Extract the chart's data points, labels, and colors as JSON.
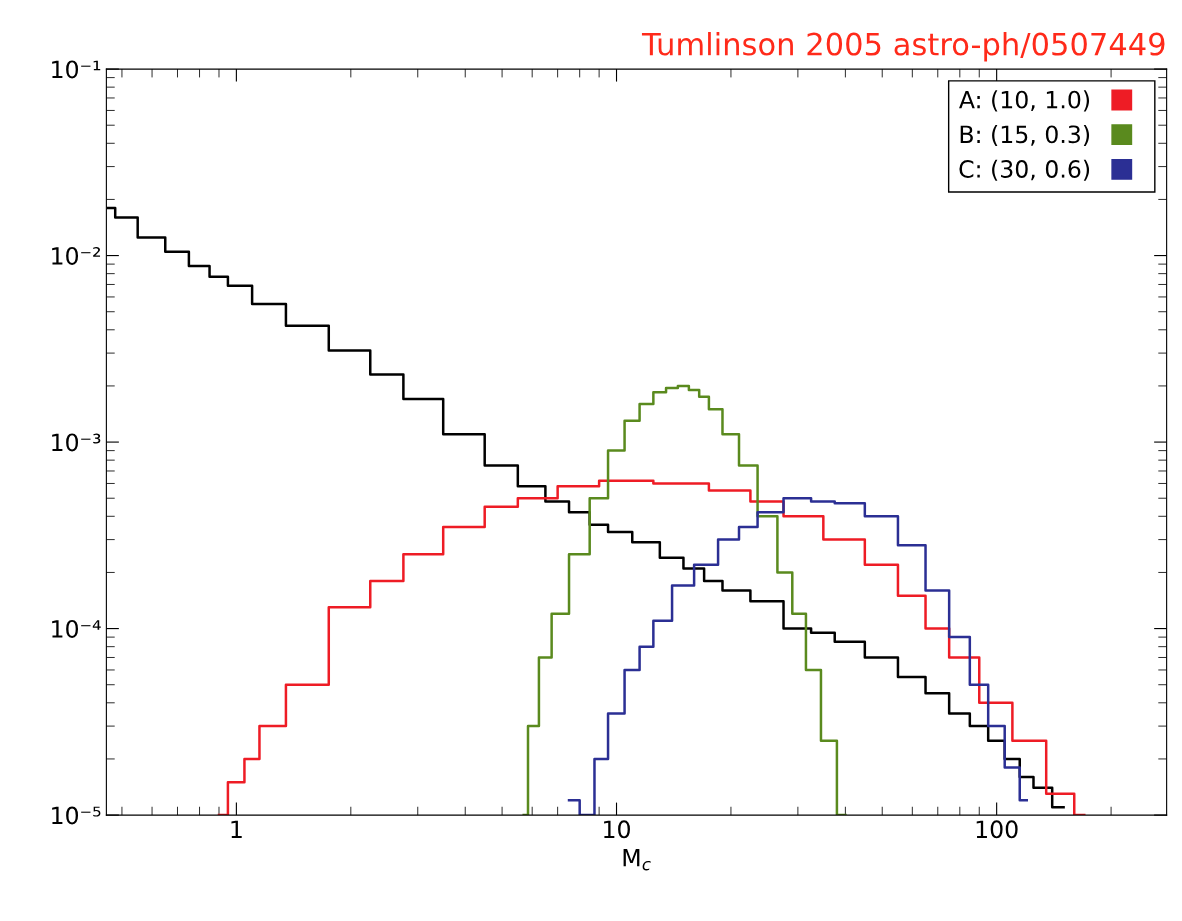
{
  "chart_data": {
    "type": "step",
    "title": "Tumlinson 2005 astro-ph/0507449",
    "xlabel": "M$_{c}$",
    "log": "xy",
    "grid": false,
    "legend": "top right",
    "xlim": [
      0.455,
      280
    ],
    "xticks": [
      1,
      10,
      100
    ],
    "ylim": [
      1e-05,
      0.1
    ],
    "yticks": [
      {
        "value": 1e-05,
        "label": "10⁻⁵"
      },
      {
        "value": 0.0001,
        "label": "10⁻⁴"
      },
      {
        "value": 0.001,
        "label": "10⁻³"
      },
      {
        "value": 0.01,
        "label": "10⁻²"
      },
      {
        "value": 0.1,
        "label": "10⁻¹"
      }
    ],
    "series": [
      {
        "color": "#000000",
        "x": [
          0.46,
          0.5,
          0.6,
          0.7,
          0.8,
          0.9,
          1,
          1.2,
          1.5,
          2,
          2.5,
          3,
          4,
          5,
          6,
          7,
          8,
          9,
          10,
          12,
          14,
          16,
          18,
          20,
          25,
          30,
          35,
          40,
          50,
          60,
          70,
          80,
          90,
          100,
          110,
          120,
          130,
          150
        ],
        "values": [
          0.018,
          0.016,
          0.0125,
          0.0105,
          0.0088,
          0.0077,
          0.0069,
          0.0055,
          0.0042,
          0.0031,
          0.0023,
          0.0017,
          0.0011,
          0.00075,
          0.00058,
          0.00048,
          0.00042,
          0.00036,
          0.00033,
          0.00029,
          0.00024,
          0.00021,
          0.00018,
          0.00016,
          0.00014,
          0.0001,
          9.5e-05,
          8.5e-05,
          7e-05,
          5.5e-05,
          4.5e-05,
          3.5e-05,
          3e-05,
          2.5e-05,
          2e-05,
          1.6e-05,
          1.4e-05,
          1.1e-05
        ]
      },
      {
        "name": "A: (10, 1.0)",
        "color": "#ee1c25",
        "x": [
          0.9,
          1.0,
          1.1,
          1.2,
          1.5,
          2,
          2.5,
          3,
          4,
          5,
          6,
          8,
          10,
          15,
          20,
          25,
          30,
          40,
          50,
          60,
          70,
          80,
          100,
          120,
          150,
          170
        ],
        "values": [
          1e-05,
          1.5e-05,
          2e-05,
          3e-05,
          5e-05,
          0.00013,
          0.00018,
          0.00025,
          0.00035,
          0.00045,
          0.0005,
          0.00058,
          0.00062,
          0.0006,
          0.00055,
          0.00048,
          0.0004,
          0.0003,
          0.00022,
          0.00015,
          0.0001,
          7e-05,
          4e-05,
          2.5e-05,
          1.3e-05,
          1e-05
        ]
      },
      {
        "name": "B: (15, 0.3)",
        "color": "#5a8a1e",
        "x": [
          5.7,
          6,
          6.5,
          7,
          8,
          9,
          10,
          11,
          12,
          13,
          14,
          15,
          16,
          17,
          18,
          20,
          22,
          25,
          28,
          30,
          33,
          36,
          40
        ],
        "values": [
          1e-05,
          3e-05,
          7e-05,
          0.00012,
          0.00025,
          0.0005,
          0.0009,
          0.0013,
          0.0016,
          0.00185,
          0.00195,
          0.002,
          0.0019,
          0.00175,
          0.0015,
          0.0011,
          0.00075,
          0.0004,
          0.0002,
          0.00012,
          6e-05,
          2.5e-05,
          1e-05
        ]
      },
      {
        "name": "C: (30, 0.6)",
        "color": "#2b2f94",
        "x": [
          7.5,
          8.5,
          9,
          10,
          11,
          12,
          13,
          15,
          17,
          20,
          22,
          25,
          30,
          35,
          40,
          50,
          60,
          70,
          80,
          90,
          100,
          110,
          120
        ],
        "values": [
          1.2e-05,
          1e-05,
          2e-05,
          3.5e-05,
          6e-05,
          8e-05,
          0.00011,
          0.00017,
          0.00022,
          0.0003,
          0.00035,
          0.00042,
          0.0005,
          0.00048,
          0.00047,
          0.0004,
          0.00028,
          0.00016,
          9e-05,
          5e-05,
          3e-05,
          1.8e-05,
          1.2e-05
        ]
      }
    ]
  }
}
